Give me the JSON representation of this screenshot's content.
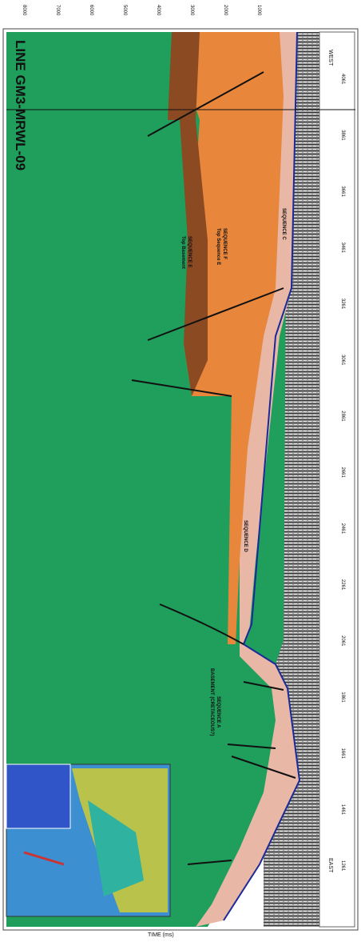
{
  "header": {
    "title": "LINE GM3-MRWL-09"
  },
  "time_axis": {
    "label": "TIME (ms)",
    "ticks": [
      "1000",
      "2000",
      "3000",
      "4000",
      "5000",
      "6000",
      "7000",
      "8000"
    ]
  },
  "ends": {
    "west": "WEST",
    "east": "EAST"
  },
  "shot_points": [
    "4061",
    "3861",
    "3661",
    "3461",
    "3261",
    "3061",
    "2861",
    "2661",
    "2461",
    "2261",
    "2061",
    "1861",
    "1661",
    "1461",
    "1261"
  ],
  "horizons": {
    "top_sequence_e": "Top Sequence E",
    "sequence_f": "SEQUENCE F",
    "top_basement": "Top Basement",
    "sequence_e": "SEQUENCE E",
    "sequence_c": "SEQUENCE C",
    "sequence_d": "SEQUENCE D",
    "basement": "BASEMENT (CRETACEOUS?)",
    "sequence_a": "SEQUENCE A"
  }
}
